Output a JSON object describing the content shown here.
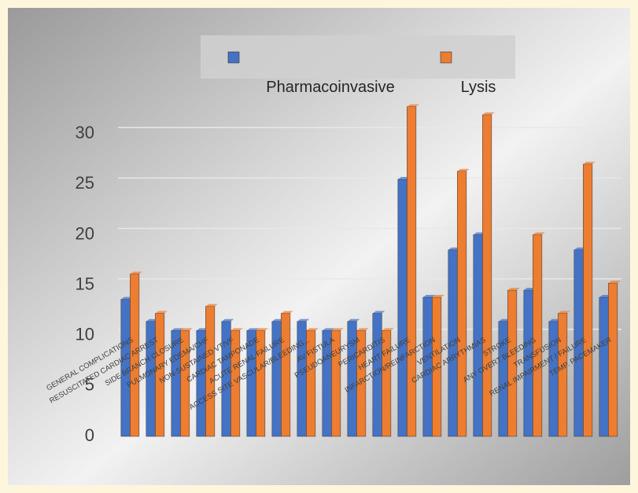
{
  "chart_data": {
    "type": "bar",
    "categories": [
      "GENERAL COMPLICATIONS",
      "RESUSCITATED CARDIAC ARREST",
      "SIDE BRANCH CLOSURE",
      "PULMONARY EDEMA/CHF",
      "NON-SUSTAINED VT/VF",
      "CARDIAC TAMPONADE",
      "ACUTE RENAL FAILURE",
      "ACCESS SITE VASCULAR/BLEEDING...",
      "AV FISTULA",
      "PSEUDOANEURYSM",
      "PERICARDITIS",
      "HEART FAILURE",
      "INFARCTION/REINFARCTION",
      "VENTILATION",
      "CARDIAC ARRYTHMIAS",
      "STROKE",
      "ANY OVERT BLEEDING",
      "TRANSFUSION",
      "RENAL IMPAIRMENT / FAILURE",
      "TEMP. PACEMAKER"
    ],
    "series": [
      {
        "name": "Pharmacoinvasive",
        "color": "#4472c4",
        "values": [
          13.6,
          11.4,
          10.5,
          10.5,
          11.4,
          10.5,
          11.4,
          11.4,
          10.5,
          11.4,
          12.2,
          25.5,
          13.8,
          18.5,
          20.0,
          11.4,
          14.5,
          11.4,
          18.5,
          13.8
        ]
      },
      {
        "name": "Lysis",
        "color": "#ed7d31",
        "values": [
          16.1,
          12.2,
          10.5,
          12.9,
          10.5,
          10.5,
          12.2,
          10.5,
          10.5,
          10.5,
          10.5,
          32.7,
          13.8,
          26.3,
          31.9,
          14.5,
          20.0,
          12.2,
          27.0,
          15.2
        ]
      }
    ],
    "ylim": [
      0,
      34
    ],
    "yticks": [
      0,
      5,
      10,
      15,
      20,
      25,
      30
    ],
    "grid": true,
    "legend": "top"
  }
}
